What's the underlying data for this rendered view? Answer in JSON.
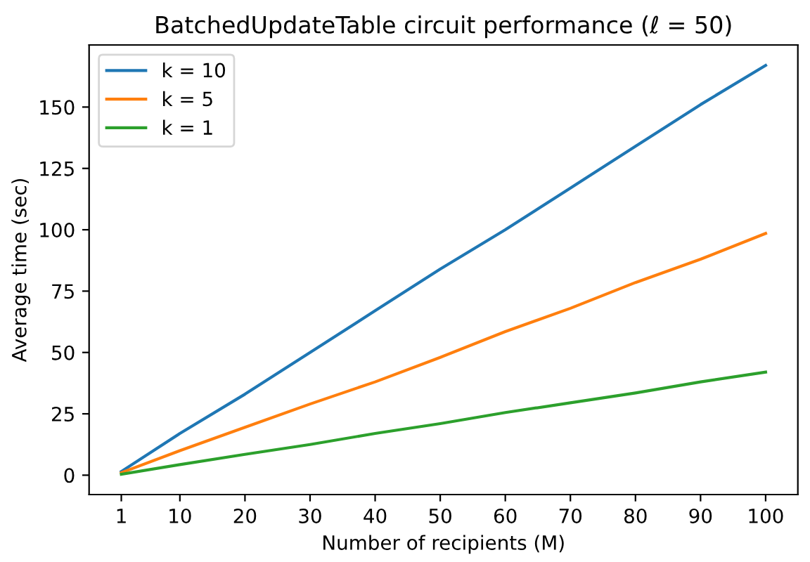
{
  "chart_data": {
    "type": "line",
    "title": "BatchedUpdateTable circuit performance (ℓ = 50)",
    "xlabel": "Number of recipients (M)",
    "ylabel": "Average time (sec)",
    "x": [
      1,
      10,
      20,
      30,
      40,
      50,
      60,
      70,
      80,
      90,
      100
    ],
    "series": [
      {
        "name": "k = 10",
        "color": "#1f77b4",
        "values": [
          1.5,
          17,
          33,
          50,
          67,
          84,
          100,
          117,
          134,
          151,
          167
        ]
      },
      {
        "name": "k = 5",
        "color": "#ff7f0e",
        "values": [
          1,
          10,
          19.5,
          29,
          38,
          48,
          58.5,
          68,
          78.5,
          88,
          98.5
        ]
      },
      {
        "name": "k = 1",
        "color": "#2ca02c",
        "values": [
          0.4,
          4.3,
          8.5,
          12.5,
          17,
          21,
          25.5,
          29.5,
          33.5,
          38,
          42
        ]
      }
    ],
    "xlim": [
      -3.95,
      104.95
    ],
    "ylim": [
      -7.9,
      175.3
    ],
    "xticks": [
      1,
      10,
      20,
      30,
      40,
      50,
      60,
      70,
      80,
      90,
      100
    ],
    "yticks": [
      0,
      25,
      50,
      75,
      100,
      125,
      150
    ],
    "legend": "top left",
    "grid": false,
    "marker": "none",
    "line_style": "solid"
  }
}
